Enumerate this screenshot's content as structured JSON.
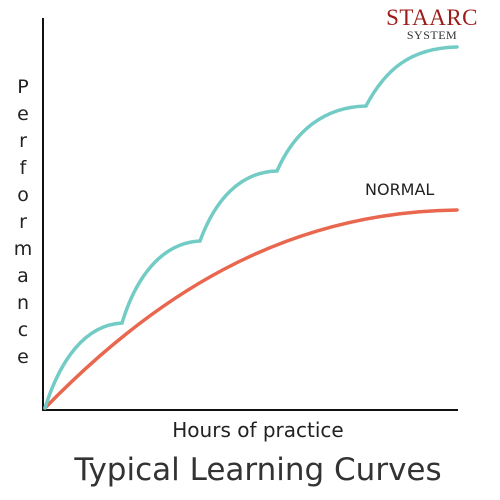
{
  "brand": {
    "name": "STAARC",
    "sub": "SYSTEM"
  },
  "y_axis_label": "Performance",
  "x_axis_label": "Hours of practice",
  "curve_label": "NORMAL",
  "title": "Typical Learning Curves"
}
